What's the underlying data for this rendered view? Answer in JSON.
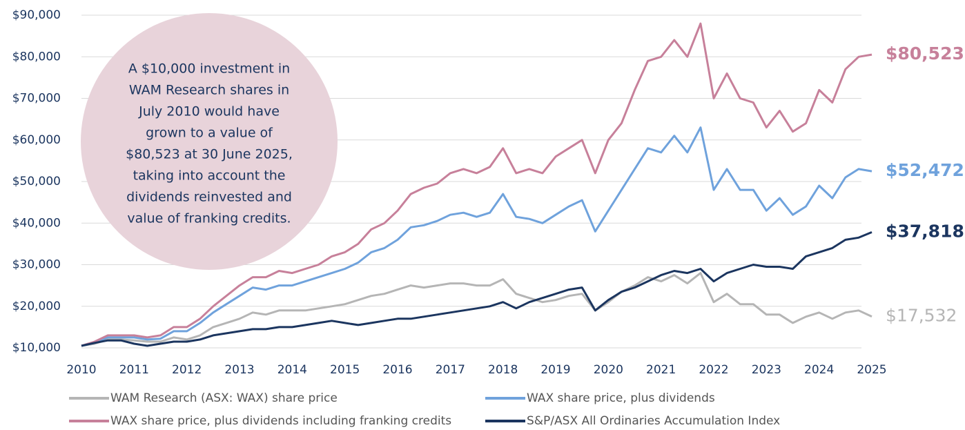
{
  "chart_data": {
    "type": "line",
    "annotation": [
      "A $10,000 investment in",
      "WAM Research shares in",
      "July 2010 would have",
      "grown to a value of",
      "$80,523 at 30 June 2025,",
      "taking into account the",
      "dividends reinvested and",
      "value of franking credits."
    ],
    "x": [
      2010,
      2010.25,
      2010.5,
      2010.75,
      2011,
      2011.25,
      2011.5,
      2011.75,
      2012,
      2012.25,
      2012.5,
      2012.75,
      2013,
      2013.25,
      2013.5,
      2013.75,
      2014,
      2014.25,
      2014.5,
      2014.75,
      2015,
      2015.25,
      2015.5,
      2015.75,
      2016,
      2016.25,
      2016.5,
      2016.75,
      2017,
      2017.25,
      2017.5,
      2017.75,
      2018,
      2018.25,
      2018.5,
      2018.75,
      2019,
      2019.25,
      2019.5,
      2019.75,
      2020,
      2020.25,
      2020.5,
      2020.75,
      2021,
      2021.25,
      2021.5,
      2021.75,
      2022,
      2022.25,
      2022.5,
      2022.75,
      2023,
      2023.25,
      2023.5,
      2023.75,
      2024,
      2024.25,
      2024.5,
      2024.75,
      2025
    ],
    "xlim": [
      2010,
      2025
    ],
    "xticks": [
      2010,
      2011,
      2012,
      2013,
      2014,
      2015,
      2016,
      2017,
      2018,
      2019,
      2020,
      2021,
      2022,
      2023,
      2024,
      2025
    ],
    "ylim": [
      10000,
      90000
    ],
    "yticks": [
      {
        "value": 10000,
        "label": "$10,000"
      },
      {
        "value": 20000,
        "label": "$20,000"
      },
      {
        "value": 30000,
        "label": "$30,000"
      },
      {
        "value": 40000,
        "label": "$40,000"
      },
      {
        "value": 50000,
        "label": "$50,000"
      },
      {
        "value": 60000,
        "label": "$60,000"
      },
      {
        "value": 70000,
        "label": "$70,000"
      },
      {
        "value": 80000,
        "label": "$80,000"
      },
      {
        "value": 90000,
        "label": "$90,000"
      }
    ],
    "grid": true,
    "series": [
      {
        "name": "WAM Research (ASX: WAX) share price",
        "color": "#b5b5b5",
        "last_label": "$17,532",
        "values": [
          10500,
          11000,
          12000,
          12000,
          11800,
          11500,
          11500,
          12500,
          12000,
          13000,
          15000,
          16000,
          17000,
          18500,
          18000,
          19000,
          19000,
          19000,
          19500,
          20000,
          20500,
          21500,
          22500,
          23000,
          24000,
          25000,
          24500,
          25000,
          25500,
          25500,
          25000,
          25000,
          26500,
          23000,
          22000,
          21000,
          21500,
          22500,
          23000,
          19000,
          21000,
          23500,
          25000,
          27000,
          26000,
          27500,
          25500,
          28000,
          21000,
          23000,
          20500,
          20500,
          18000,
          18000,
          16000,
          17500,
          18500,
          17000,
          18500,
          19000,
          17532
        ]
      },
      {
        "name": "WAX share price, plus dividends",
        "color": "#6fa2dc",
        "last_label": "$52,472",
        "values": [
          10500,
          11200,
          12500,
          12500,
          12500,
          12000,
          12200,
          14000,
          14000,
          16000,
          18500,
          20500,
          22500,
          24500,
          24000,
          25000,
          25000,
          26000,
          27000,
          28000,
          29000,
          30500,
          33000,
          34000,
          36000,
          39000,
          39500,
          40500,
          42000,
          42500,
          41500,
          42500,
          47000,
          41500,
          41000,
          40000,
          42000,
          44000,
          45500,
          38000,
          43000,
          48000,
          53000,
          58000,
          57000,
          61000,
          57000,
          63000,
          48000,
          53000,
          48000,
          48000,
          43000,
          46000,
          42000,
          44000,
          49000,
          46000,
          51000,
          53000,
          52472
        ]
      },
      {
        "name": "WAX share price, plus dividends including franking credits",
        "color": "#c7809a",
        "last_label": "$80,523",
        "values": [
          10500,
          11500,
          13000,
          13000,
          13000,
          12500,
          13000,
          15000,
          15000,
          17000,
          20000,
          22500,
          25000,
          27000,
          27000,
          28500,
          28000,
          29000,
          30000,
          32000,
          33000,
          35000,
          38500,
          40000,
          43000,
          47000,
          48500,
          49500,
          52000,
          53000,
          52000,
          53500,
          58000,
          52000,
          53000,
          52000,
          56000,
          58000,
          60000,
          52000,
          60000,
          64000,
          72000,
          79000,
          80000,
          84000,
          80000,
          88000,
          70000,
          76000,
          70000,
          69000,
          63000,
          67000,
          62000,
          64000,
          72000,
          69000,
          77000,
          80000,
          80523
        ]
      },
      {
        "name": "S&P/ASX All Ordinaries Accumulation Index",
        "color": "#1b355f",
        "last_label": "$37,818",
        "values": [
          10500,
          11200,
          11800,
          11800,
          11000,
          10500,
          11000,
          11500,
          11500,
          12000,
          13000,
          13500,
          14000,
          14500,
          14500,
          15000,
          15000,
          15500,
          16000,
          16500,
          16000,
          15500,
          16000,
          16500,
          17000,
          17000,
          17500,
          18000,
          18500,
          19000,
          19500,
          20000,
          21000,
          19500,
          21000,
          22000,
          23000,
          24000,
          24500,
          19000,
          21500,
          23500,
          24500,
          26000,
          27500,
          28500,
          28000,
          29000,
          26000,
          28000,
          29000,
          30000,
          29500,
          29500,
          29000,
          32000,
          33000,
          34000,
          36000,
          36500,
          37818
        ]
      }
    ]
  }
}
